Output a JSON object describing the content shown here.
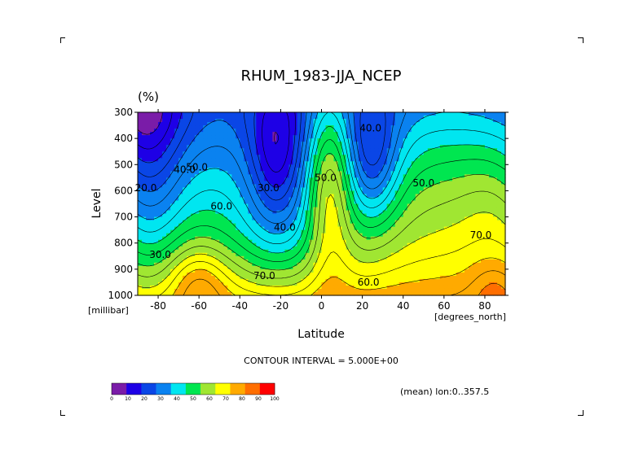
{
  "chart_data": {
    "type": "contour",
    "title": "RHUM_1983-JJA_NCEP",
    "units": "(%)",
    "xlabel": "Latitude",
    "ylabel": "Level",
    "x_units": "[degrees_north]",
    "y_units": "[millibar]",
    "xlim": [
      -90,
      90
    ],
    "ylim": [
      1000,
      300
    ],
    "x_ticks": [
      -80,
      -60,
      -40,
      -20,
      0,
      20,
      40,
      60,
      80
    ],
    "x_tick_labels": [
      "-80",
      "-60",
      "-40",
      "-20",
      "0",
      "20",
      "40",
      "60",
      "80"
    ],
    "y_ticks": [
      300,
      400,
      500,
      600,
      700,
      800,
      900,
      1000
    ],
    "y_tick_labels": [
      "300",
      "400",
      "500",
      "600",
      "700",
      "800",
      "900",
      "1000"
    ],
    "contour_interval_text": "CONTOUR INTERVAL = 5.000E+00",
    "averaging_note": "(mean) lon:0..357.5",
    "colorbar": {
      "levels": [
        0,
        10,
        20,
        30,
        40,
        50,
        60,
        70,
        80,
        90,
        100
      ],
      "level_labels": [
        "0",
        "10",
        "20",
        "30",
        "40",
        "50",
        "60",
        "70",
        "80",
        "90",
        "100"
      ],
      "colors": [
        "#7a1ca8",
        "#1e00e6",
        "#0a46e6",
        "#0a82f0",
        "#00e6f0",
        "#00e650",
        "#a0e632",
        "#ffff00",
        "#ffaa00",
        "#ff6e00",
        "#ff0000"
      ]
    },
    "contour_labels": [
      {
        "text": "20.0",
        "lat": -86,
        "lev": 590
      },
      {
        "text": "30.0",
        "lat": -79,
        "lev": 845
      },
      {
        "text": "40.0",
        "lat": -67,
        "lev": 520
      },
      {
        "text": "50.0",
        "lat": -61,
        "lev": 510
      },
      {
        "text": "60.0",
        "lat": -49,
        "lev": 660
      },
      {
        "text": "30.0",
        "lat": -26,
        "lev": 590
      },
      {
        "text": "40.0",
        "lat": -18,
        "lev": 740
      },
      {
        "text": "50.0",
        "lat": 2,
        "lev": 550
      },
      {
        "text": "40.0",
        "lat": 24,
        "lev": 360
      },
      {
        "text": "50.0",
        "lat": 50,
        "lev": 570
      },
      {
        "text": "70.0",
        "lat": -28,
        "lev": 925
      },
      {
        "text": "60.0",
        "lat": 23,
        "lev": 950
      },
      {
        "text": "70.0",
        "lat": 78,
        "lev": 770
      }
    ],
    "grid": false
  }
}
